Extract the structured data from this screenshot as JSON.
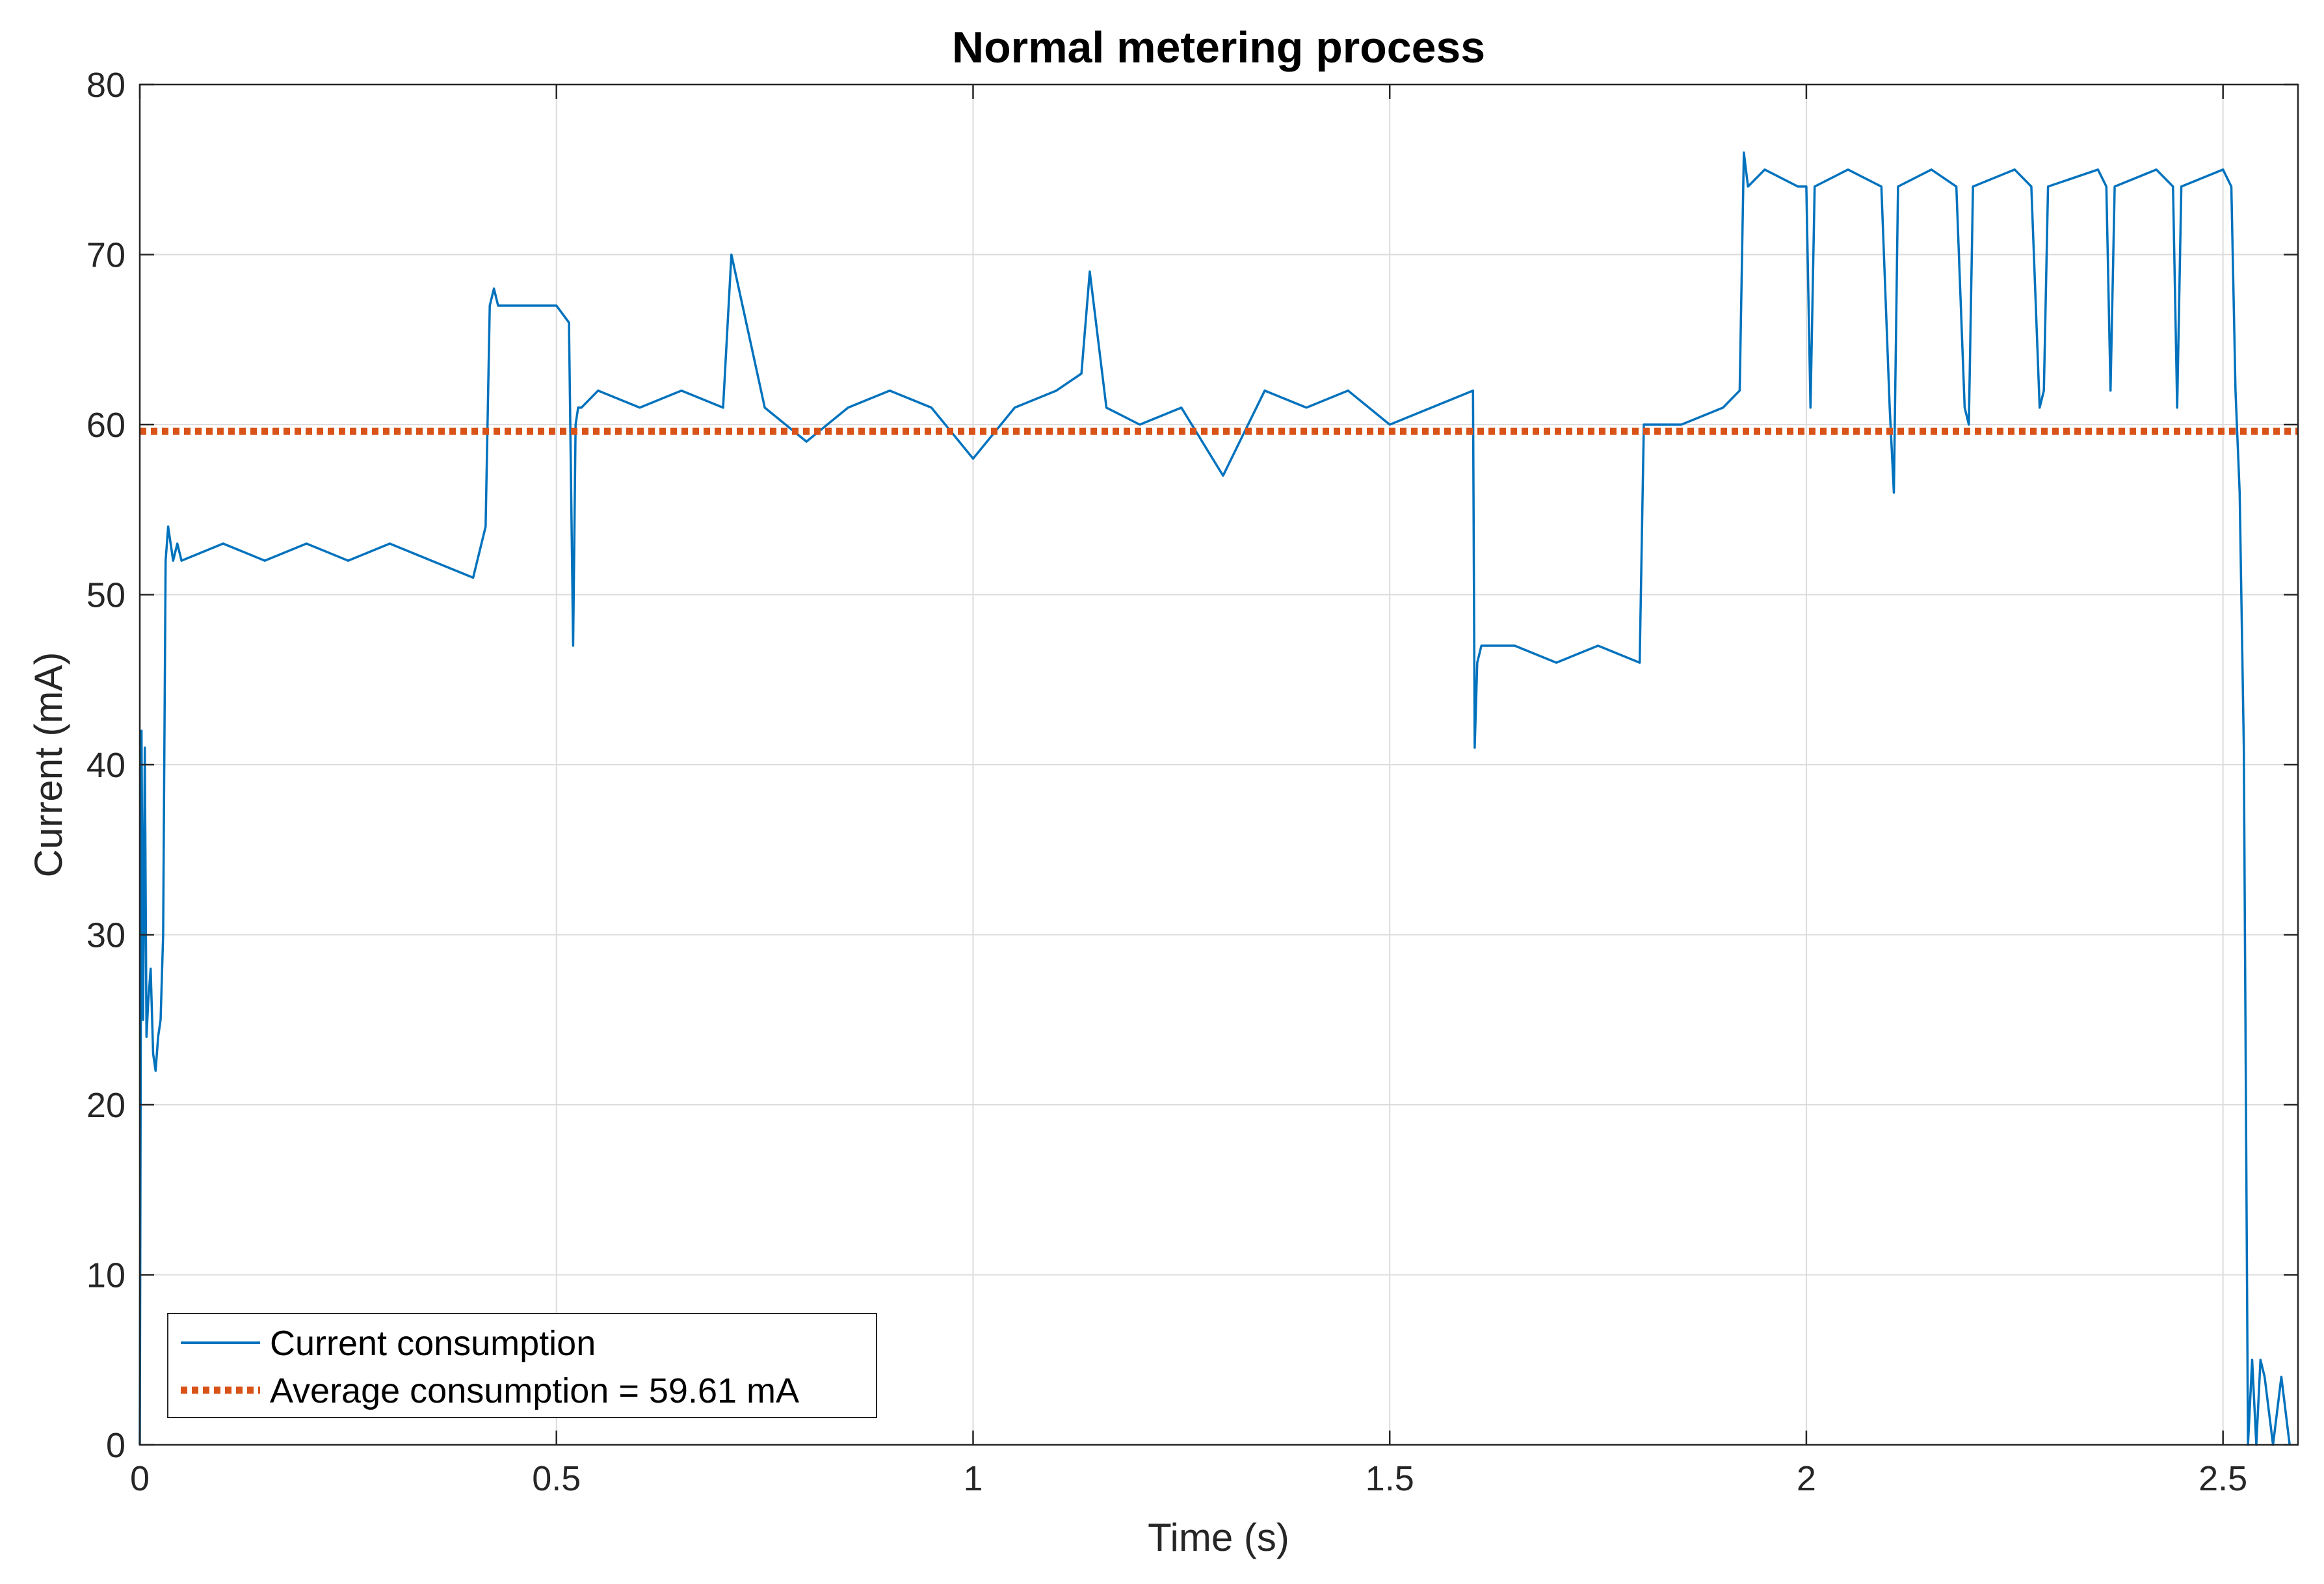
{
  "chart_data": {
    "type": "line",
    "title": "Normal metering process",
    "xlabel": "Time (s)",
    "ylabel": "Current (mA)",
    "xlim": [
      0,
      2.59
    ],
    "ylim": [
      0,
      80
    ],
    "xticks": [
      0,
      0.5,
      1,
      1.5,
      2,
      2.5
    ],
    "xtick_labels": [
      "0",
      "0.5",
      "1",
      "1.5",
      "2",
      "2.5"
    ],
    "yticks": [
      0,
      10,
      20,
      30,
      40,
      50,
      60,
      70,
      80
    ],
    "ytick_labels": [
      "0",
      "10",
      "20",
      "30",
      "40",
      "50",
      "60",
      "70",
      "80"
    ],
    "grid": true,
    "legend_position": "bottom-left",
    "series": [
      {
        "name": "Current consumption",
        "color": "#0072BD",
        "style": "solid",
        "x": [
          0,
          0.002,
          0.004,
          0.006,
          0.008,
          0.01,
          0.013,
          0.016,
          0.019,
          0.022,
          0.025,
          0.028,
          0.031,
          0.034,
          0.037,
          0.04,
          0.045,
          0.05,
          0.1,
          0.15,
          0.2,
          0.25,
          0.3,
          0.35,
          0.4,
          0.415,
          0.42,
          0.425,
          0.43,
          0.5,
          0.515,
          0.52,
          0.523,
          0.526,
          0.53,
          0.55,
          0.6,
          0.65,
          0.7,
          0.71,
          0.75,
          0.8,
          0.85,
          0.9,
          0.95,
          1.0,
          1.05,
          1.1,
          1.13,
          1.14,
          1.15,
          1.16,
          1.2,
          1.25,
          1.3,
          1.35,
          1.4,
          1.45,
          1.5,
          1.55,
          1.6,
          1.602,
          1.605,
          1.61,
          1.65,
          1.7,
          1.75,
          1.8,
          1.805,
          1.81,
          1.85,
          1.9,
          1.92,
          1.925,
          1.93,
          1.95,
          1.99,
          2.0,
          2.005,
          2.01,
          2.05,
          2.09,
          2.1,
          2.105,
          2.11,
          2.15,
          2.18,
          2.19,
          2.195,
          2.2,
          2.25,
          2.27,
          2.28,
          2.285,
          2.29,
          2.35,
          2.36,
          2.365,
          2.37,
          2.42,
          2.44,
          2.445,
          2.45,
          2.5,
          2.51,
          2.515,
          2.52,
          2.525,
          2.53,
          2.535,
          2.54,
          2.545,
          2.55,
          2.56,
          2.57,
          2.58
        ],
        "y": [
          0,
          42,
          25,
          41,
          24,
          26,
          28,
          23,
          22,
          24,
          25,
          30,
          52,
          54,
          53,
          52,
          53,
          52,
          53,
          52,
          53,
          52,
          53,
          52,
          51,
          54,
          67,
          68,
          67,
          67,
          66,
          47,
          60,
          61,
          61,
          62,
          61,
          62,
          61,
          70,
          61,
          59,
          61,
          62,
          61,
          58,
          61,
          62,
          63,
          69,
          65,
          61,
          60,
          61,
          57,
          62,
          61,
          62,
          60,
          61,
          62,
          41,
          46,
          47,
          47,
          46,
          47,
          46,
          60,
          60,
          60,
          61,
          62,
          76,
          74,
          75,
          74,
          74,
          61,
          74,
          75,
          74,
          61,
          56,
          74,
          75,
          74,
          61,
          60,
          74,
          75,
          74,
          61,
          62,
          74,
          75,
          74,
          62,
          74,
          75,
          74,
          61,
          74,
          75,
          74,
          62,
          56,
          41,
          0,
          5,
          0,
          5,
          4,
          0,
          4,
          0
        ]
      },
      {
        "name": "Average consumption = 59.61 mA",
        "color": "#D95319",
        "style": "dotted",
        "constant": 59.61
      }
    ]
  }
}
